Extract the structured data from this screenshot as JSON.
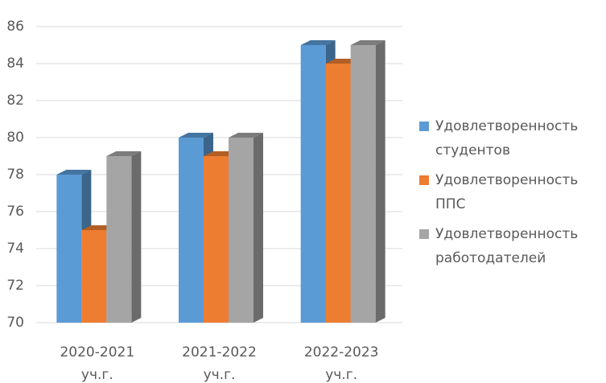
{
  "chart_data": {
    "type": "bar3d",
    "categories": [
      "2020-2021 уч.г.",
      "2021-2022 уч.г.",
      "2022-2023 уч.г."
    ],
    "series": [
      {
        "name": "Удовлетворенность студентов",
        "color": "#5b9bd5",
        "values": [
          78,
          80,
          85
        ]
      },
      {
        "name": "Удовлетворенность ППС",
        "color": "#ed7d31",
        "values": [
          75,
          79,
          84
        ]
      },
      {
        "name": "Удовлетворенность работодателей",
        "color": "#a5a5a5",
        "values": [
          79,
          80,
          85
        ]
      }
    ],
    "ylim": [
      70,
      86
    ],
    "yticks": [
      70,
      72,
      74,
      76,
      78,
      80,
      82,
      84,
      86
    ],
    "grid": true,
    "legend": "right"
  }
}
